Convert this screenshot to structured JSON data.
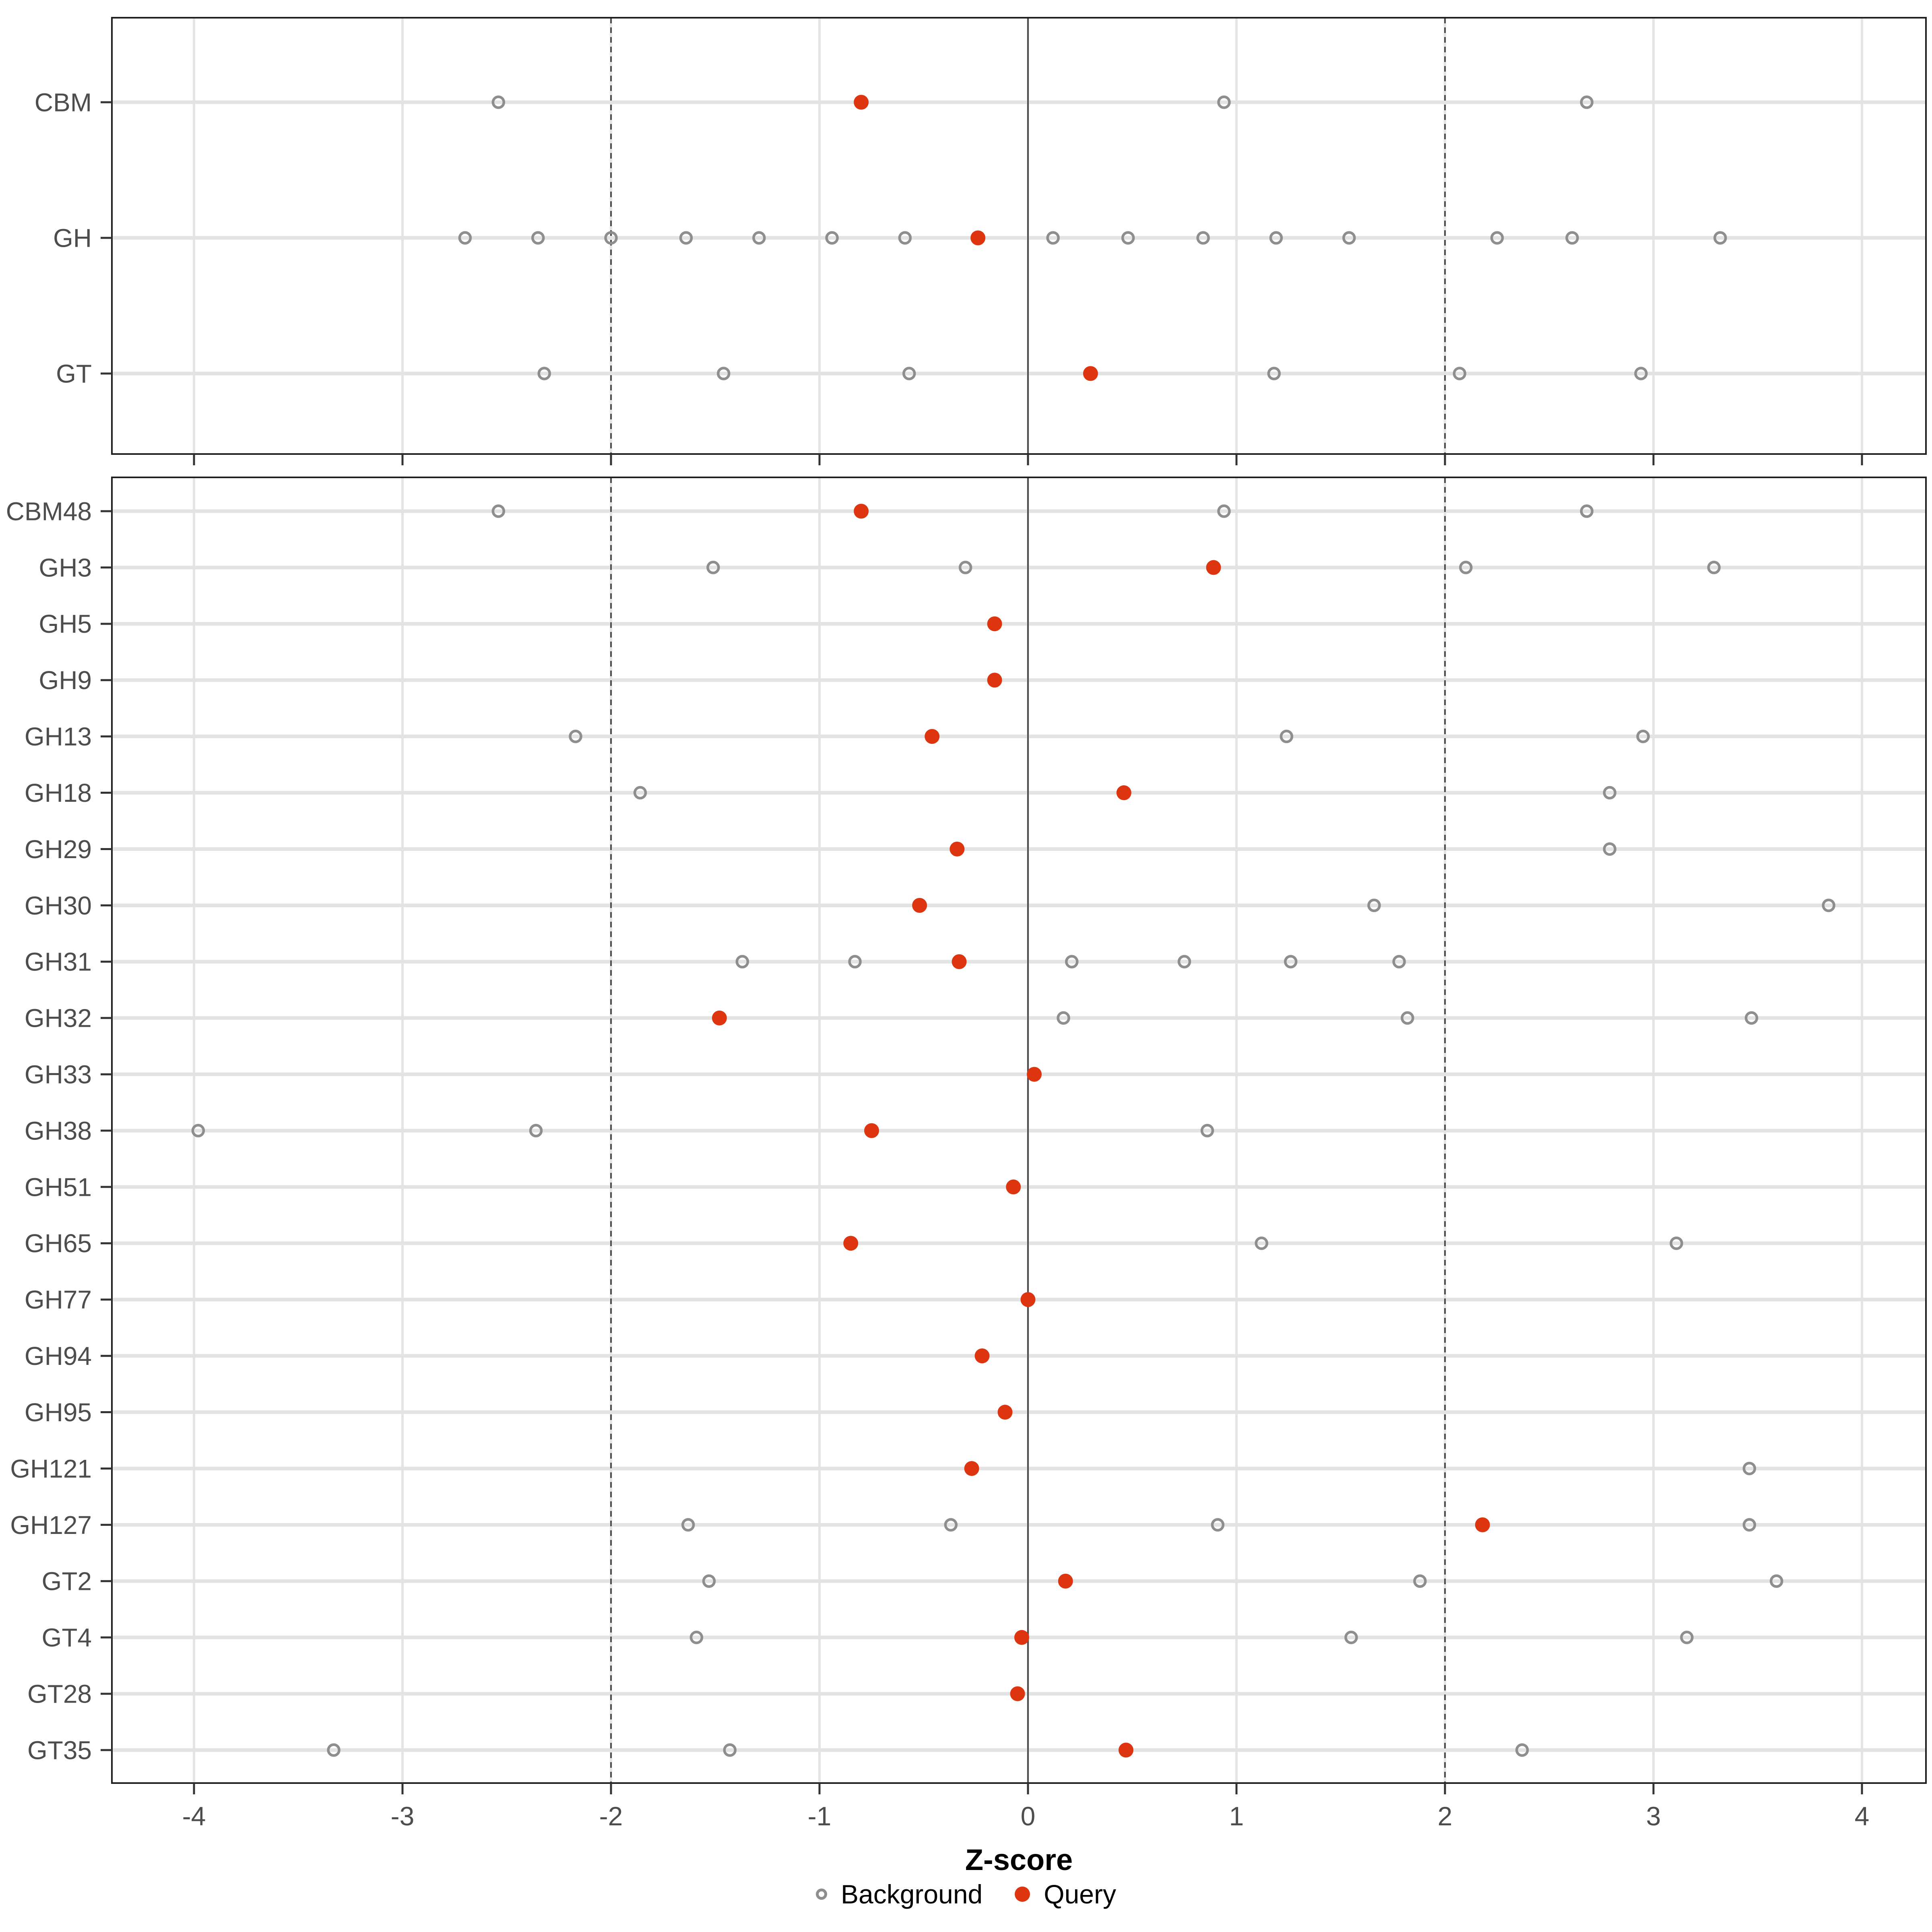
{
  "chart_data": {
    "type": "scatter",
    "title": "",
    "xlabel": "Z-score",
    "xlim": [
      -4.4,
      4.3
    ],
    "x_ticks": [
      -4,
      -3,
      -2,
      -1,
      0,
      1,
      2,
      3,
      4
    ],
    "reference_lines": {
      "solid": [
        0
      ],
      "dashed": [
        -2,
        2
      ]
    },
    "grid": "major-x",
    "legend_position": "bottom",
    "series_legend": [
      {
        "name": "Background",
        "marker": "open-circle",
        "color": "#8E8E8E"
      },
      {
        "name": "Query",
        "marker": "filled-circle",
        "color": "#DC350F"
      }
    ],
    "panels": [
      {
        "id": "summary-classes",
        "rows": [
          {
            "label": "CBM",
            "background": [
              -2.54,
              0.94,
              2.68
            ],
            "query": [
              -0.8
            ]
          },
          {
            "label": "GH",
            "background": [
              -2.7,
              -2.35,
              -2.0,
              -1.64,
              -1.29,
              -0.94,
              -0.59,
              0.12,
              0.48,
              0.84,
              1.19,
              1.54,
              2.25,
              2.61,
              3.32
            ],
            "query": [
              -0.24
            ]
          },
          {
            "label": "GT",
            "background": [
              -2.32,
              -1.46,
              -0.57,
              1.18,
              2.07,
              2.94
            ],
            "query": [
              0.3
            ]
          }
        ]
      },
      {
        "id": "families",
        "rows": [
          {
            "label": "CBM48",
            "background": [
              -2.54,
              0.94,
              2.68
            ],
            "query": [
              -0.8
            ]
          },
          {
            "label": "GH3",
            "background": [
              -1.51,
              -0.3,
              2.1,
              3.29
            ],
            "query": [
              0.89
            ]
          },
          {
            "label": "GH5",
            "background": [],
            "query": [
              -0.16
            ]
          },
          {
            "label": "GH9",
            "background": [],
            "query": [
              -0.16
            ]
          },
          {
            "label": "GH13",
            "background": [
              -2.17,
              1.24,
              2.95
            ],
            "query": [
              -0.46
            ]
          },
          {
            "label": "GH18",
            "background": [
              -1.86,
              2.79
            ],
            "query": [
              0.46
            ]
          },
          {
            "label": "GH29",
            "background": [
              2.79
            ],
            "query": [
              -0.34
            ]
          },
          {
            "label": "GH30",
            "background": [
              1.66,
              3.84
            ],
            "query": [
              -0.52
            ]
          },
          {
            "label": "GH31",
            "background": [
              -1.37,
              -0.83,
              0.21,
              0.75,
              1.26,
              1.78
            ],
            "query": [
              -0.33
            ]
          },
          {
            "label": "GH32",
            "background": [
              0.17,
              1.82,
              3.47
            ],
            "query": [
              -1.48
            ]
          },
          {
            "label": "GH33",
            "background": [],
            "query": [
              0.03
            ]
          },
          {
            "label": "GH38",
            "background": [
              -3.98,
              -2.36,
              0.86
            ],
            "query": [
              -0.75
            ]
          },
          {
            "label": "GH51",
            "background": [],
            "query": [
              -0.07
            ]
          },
          {
            "label": "GH65",
            "background": [
              1.12,
              3.11
            ],
            "query": [
              -0.85
            ]
          },
          {
            "label": "GH77",
            "background": [],
            "query": [
              0.0
            ]
          },
          {
            "label": "GH94",
            "background": [],
            "query": [
              -0.22
            ]
          },
          {
            "label": "GH95",
            "background": [],
            "query": [
              -0.11
            ]
          },
          {
            "label": "GH121",
            "background": [
              3.46
            ],
            "query": [
              -0.27
            ]
          },
          {
            "label": "GH127",
            "background": [
              -1.63,
              -0.37,
              0.91,
              3.46
            ],
            "query": [
              2.18
            ]
          },
          {
            "label": "GT2",
            "background": [
              -1.53,
              1.88,
              3.59
            ],
            "query": [
              0.18
            ]
          },
          {
            "label": "GT4",
            "background": [
              -1.59,
              1.55,
              3.16
            ],
            "query": [
              -0.03
            ]
          },
          {
            "label": "GT28",
            "background": [],
            "query": [
              -0.05
            ]
          },
          {
            "label": "GT35",
            "background": [
              -3.33,
              -1.43,
              2.37
            ],
            "query": [
              0.47
            ]
          }
        ]
      }
    ]
  },
  "colors": {
    "query": "#DC350F",
    "background_stroke": "#8E8E8E",
    "grid_major": "#E4E4E4",
    "row_line": "#E3E3E3",
    "reference_line": "#4D4D4D",
    "panel_border": "#1F1F1F",
    "tick": "#333333",
    "axis_text": "#4D4D4D"
  }
}
